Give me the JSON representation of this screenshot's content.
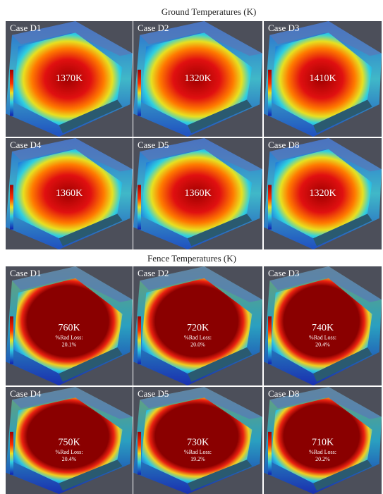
{
  "ground": {
    "title": "Ground Temperatures (K)",
    "panels": [
      {
        "case": "Case D1",
        "temp": "1370K"
      },
      {
        "case": "Case D2",
        "temp": "1320K"
      },
      {
        "case": "Case D3",
        "temp": "1410K"
      },
      {
        "case": "Case D4",
        "temp": "1360K"
      },
      {
        "case": "Case D5",
        "temp": "1360K"
      },
      {
        "case": "Case D8",
        "temp": "1320K"
      }
    ]
  },
  "fence": {
    "title": "Fence Temperatures (K)",
    "panels": [
      {
        "case": "Case D1",
        "temp": "760K",
        "loss_label": "%Rad Loss:",
        "loss": "20.1%"
      },
      {
        "case": "Case D2",
        "temp": "720K",
        "loss_label": "%Rad Loss:",
        "loss": "20.0%"
      },
      {
        "case": "Case D3",
        "temp": "740K",
        "loss_label": "%Rad Loss:",
        "loss": "20.4%"
      },
      {
        "case": "Case D4",
        "temp": "750K",
        "loss_label": "%Rad Loss:",
        "loss": "20.4%"
      },
      {
        "case": "Case D5",
        "temp": "730K",
        "loss_label": "%Rad Loss:",
        "loss": "19.2%"
      },
      {
        "case": "Case D8",
        "temp": "710K",
        "loss_label": "%Rad Loss:",
        "loss": "20.2%"
      }
    ]
  }
}
